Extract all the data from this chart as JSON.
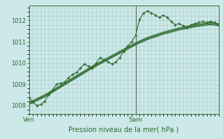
{
  "bg_color": "#cce8e8",
  "grid_color": "#aacccc",
  "line_color": "#2d6b2d",
  "marker_color": "#2d6b2d",
  "ylim": [
    1007.6,
    1012.7
  ],
  "xlim": [
    0,
    48
  ],
  "ylabel_text": "Pression niveau de la mer( hPa )",
  "ven_x": 0,
  "sam_x": 27,
  "vline_x": 27,
  "yticks": [
    1008,
    1009,
    1010,
    1011,
    1012
  ],
  "xtick_positions": [
    0,
    27
  ],
  "xtick_labels": [
    "Ven",
    "Sam"
  ],
  "series_smooth": [
    {
      "x": [
        0,
        4,
        8,
        12,
        16,
        20,
        24,
        27,
        30,
        34,
        38,
        42,
        46,
        48
      ],
      "y": [
        1008.05,
        1008.4,
        1008.85,
        1009.3,
        1009.75,
        1010.15,
        1010.55,
        1010.85,
        1011.1,
        1011.35,
        1011.55,
        1011.7,
        1011.8,
        1011.75
      ]
    },
    {
      "x": [
        0,
        4,
        8,
        12,
        16,
        20,
        24,
        27,
        30,
        34,
        38,
        42,
        46,
        48
      ],
      "y": [
        1008.1,
        1008.45,
        1008.9,
        1009.35,
        1009.8,
        1010.2,
        1010.6,
        1010.9,
        1011.15,
        1011.4,
        1011.6,
        1011.75,
        1011.85,
        1011.8
      ]
    },
    {
      "x": [
        0,
        4,
        8,
        12,
        16,
        20,
        24,
        27,
        30,
        34,
        38,
        42,
        46,
        48
      ],
      "y": [
        1008.15,
        1008.5,
        1008.95,
        1009.4,
        1009.85,
        1010.25,
        1010.65,
        1010.95,
        1011.2,
        1011.45,
        1011.65,
        1011.8,
        1011.9,
        1011.85
      ]
    }
  ],
  "series_zigzag": {
    "x": [
      0,
      1,
      2,
      3,
      4,
      5,
      6,
      7,
      8,
      9,
      10,
      11,
      12,
      13,
      14,
      15,
      16,
      17,
      18,
      19,
      20,
      21,
      22,
      23,
      24,
      25,
      26,
      27,
      28,
      29,
      30,
      31,
      32,
      33,
      34,
      35,
      36,
      37,
      38,
      39,
      40,
      41,
      42,
      43,
      44,
      45,
      46,
      47,
      48
    ],
    "y": [
      1008.4,
      1008.15,
      1008.0,
      1008.05,
      1008.2,
      1008.5,
      1008.75,
      1009.0,
      1009.05,
      1009.1,
      1009.3,
      1009.45,
      1009.55,
      1009.75,
      1009.95,
      1009.85,
      1009.75,
      1010.0,
      1010.25,
      1010.15,
      1010.05,
      1009.95,
      1010.05,
      1010.25,
      1010.55,
      1010.8,
      1011.0,
      1011.3,
      1012.05,
      1012.35,
      1012.45,
      1012.35,
      1012.25,
      1012.15,
      1012.25,
      1012.15,
      1011.95,
      1011.8,
      1011.85,
      1011.75,
      1011.65,
      1011.8,
      1011.85,
      1011.9,
      1011.95,
      1011.9,
      1011.95,
      1011.9,
      1011.8
    ]
  }
}
